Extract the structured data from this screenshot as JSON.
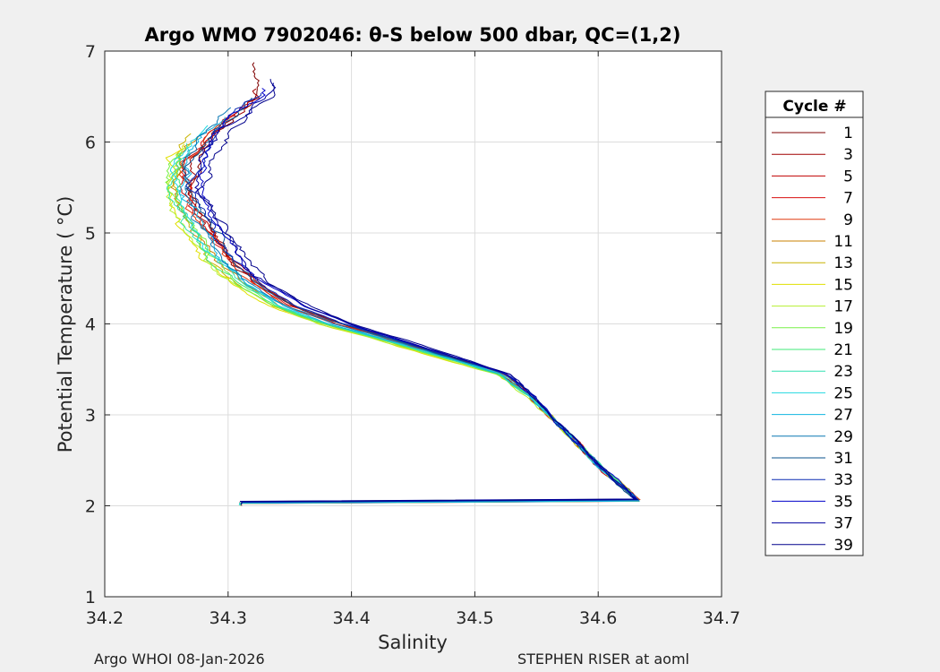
{
  "chart_data": {
    "type": "line",
    "title": "Argo WMO 7902046: θ-S below 500 dbar,  QC=(1,2)",
    "xlabel": "Salinity",
    "ylabel": "Potential Temperature ( °C)",
    "xlim": [
      34.2,
      34.7
    ],
    "ylim": [
      1,
      7
    ],
    "xticks": [
      34.2,
      34.3,
      34.4,
      34.5,
      34.6,
      34.7
    ],
    "xtick_labels": [
      "34.2",
      "34.3",
      "34.4",
      "34.5",
      "34.6",
      "34.7"
    ],
    "yticks": [
      1,
      2,
      3,
      4,
      5,
      6,
      7
    ],
    "ytick_labels": [
      "1",
      "2",
      "3",
      "4",
      "5",
      "6",
      "7"
    ],
    "grid": true,
    "legend": {
      "title": "Cycle #",
      "placement": "outside-right",
      "entries": [
        "1",
        "3",
        "5",
        "7",
        "9",
        "11",
        "13",
        "15",
        "17",
        "19",
        "21",
        "23",
        "25",
        "27",
        "29",
        "31",
        "33",
        "35",
        "37",
        "39"
      ],
      "colors": [
        "#7f0000",
        "#a00000",
        "#c00000",
        "#d81010",
        "#e03a10",
        "#c88000",
        "#c8b400",
        "#e0e000",
        "#b4f030",
        "#78f048",
        "#40e878",
        "#30e0b0",
        "#20d8e0",
        "#10b4e0",
        "#0a78b4",
        "#08508c",
        "#0a2ab4",
        "#0000c8",
        "#0000a0",
        "#00008c"
      ]
    },
    "series": [
      {
        "name": "1",
        "color": "#7f0000"
      },
      {
        "name": "3",
        "color": "#a00000"
      },
      {
        "name": "5",
        "color": "#c00000"
      },
      {
        "name": "7",
        "color": "#d81010"
      },
      {
        "name": "9",
        "color": "#e03a10"
      },
      {
        "name": "11",
        "color": "#c88000"
      },
      {
        "name": "13",
        "color": "#c8b400"
      },
      {
        "name": "15",
        "color": "#e0e000"
      },
      {
        "name": "17",
        "color": "#b4f030"
      },
      {
        "name": "19",
        "color": "#78f048"
      },
      {
        "name": "21",
        "color": "#40e878"
      },
      {
        "name": "23",
        "color": "#30e0b0"
      },
      {
        "name": "25",
        "color": "#20d8e0"
      },
      {
        "name": "27",
        "color": "#10b4e0"
      },
      {
        "name": "29",
        "color": "#0a78b4"
      },
      {
        "name": "31",
        "color": "#08508c"
      },
      {
        "name": "33",
        "color": "#0a2ab4"
      },
      {
        "name": "35",
        "color": "#0000c8"
      },
      {
        "name": "37",
        "color": "#0000a0"
      },
      {
        "name": "39",
        "color": "#00008c"
      }
    ],
    "base_curve": [
      {
        "s": 34.633,
        "t": 2.05
      },
      {
        "s": 34.6,
        "t": 2.45
      },
      {
        "s": 34.575,
        "t": 2.8
      },
      {
        "s": 34.545,
        "t": 3.2
      },
      {
        "s": 34.52,
        "t": 3.45
      },
      {
        "s": 34.47,
        "t": 3.65
      },
      {
        "s": 34.42,
        "t": 3.85
      },
      {
        "s": 34.38,
        "t": 4.0
      },
      {
        "s": 34.34,
        "t": 4.2
      },
      {
        "s": 34.31,
        "t": 4.45
      },
      {
        "s": 34.29,
        "t": 4.7
      },
      {
        "s": 34.275,
        "t": 5.0
      },
      {
        "s": 34.262,
        "t": 5.3
      },
      {
        "s": 34.256,
        "t": 5.5
      },
      {
        "s": 34.26,
        "t": 5.8
      },
      {
        "s": 34.275,
        "t": 6.1
      },
      {
        "s": 34.29,
        "t": 6.3
      },
      {
        "s": 34.31,
        "t": 6.5
      }
    ],
    "salinity_offset_by_series": [
      0.013,
      0.012,
      0.011,
      0.01,
      0.009,
      0.0,
      -0.004,
      -0.008,
      -0.006,
      -0.004,
      -0.002,
      0.0,
      0.002,
      0.004,
      0.008,
      0.012,
      0.016,
      0.02,
      0.022,
      0.024
    ],
    "top_temperature_by_series": [
      6.9,
      6.6,
      6.5,
      6.3,
      6.2,
      6.1,
      6.1,
      6.0,
      6.0,
      5.9,
      5.9,
      6.0,
      6.2,
      6.3,
      6.4,
      6.5,
      6.55,
      6.6,
      6.65,
      6.7
    ]
  },
  "footer": {
    "left": "Argo WHOI 08-Jan-2026",
    "right": "STEPHEN RISER at aoml"
  }
}
